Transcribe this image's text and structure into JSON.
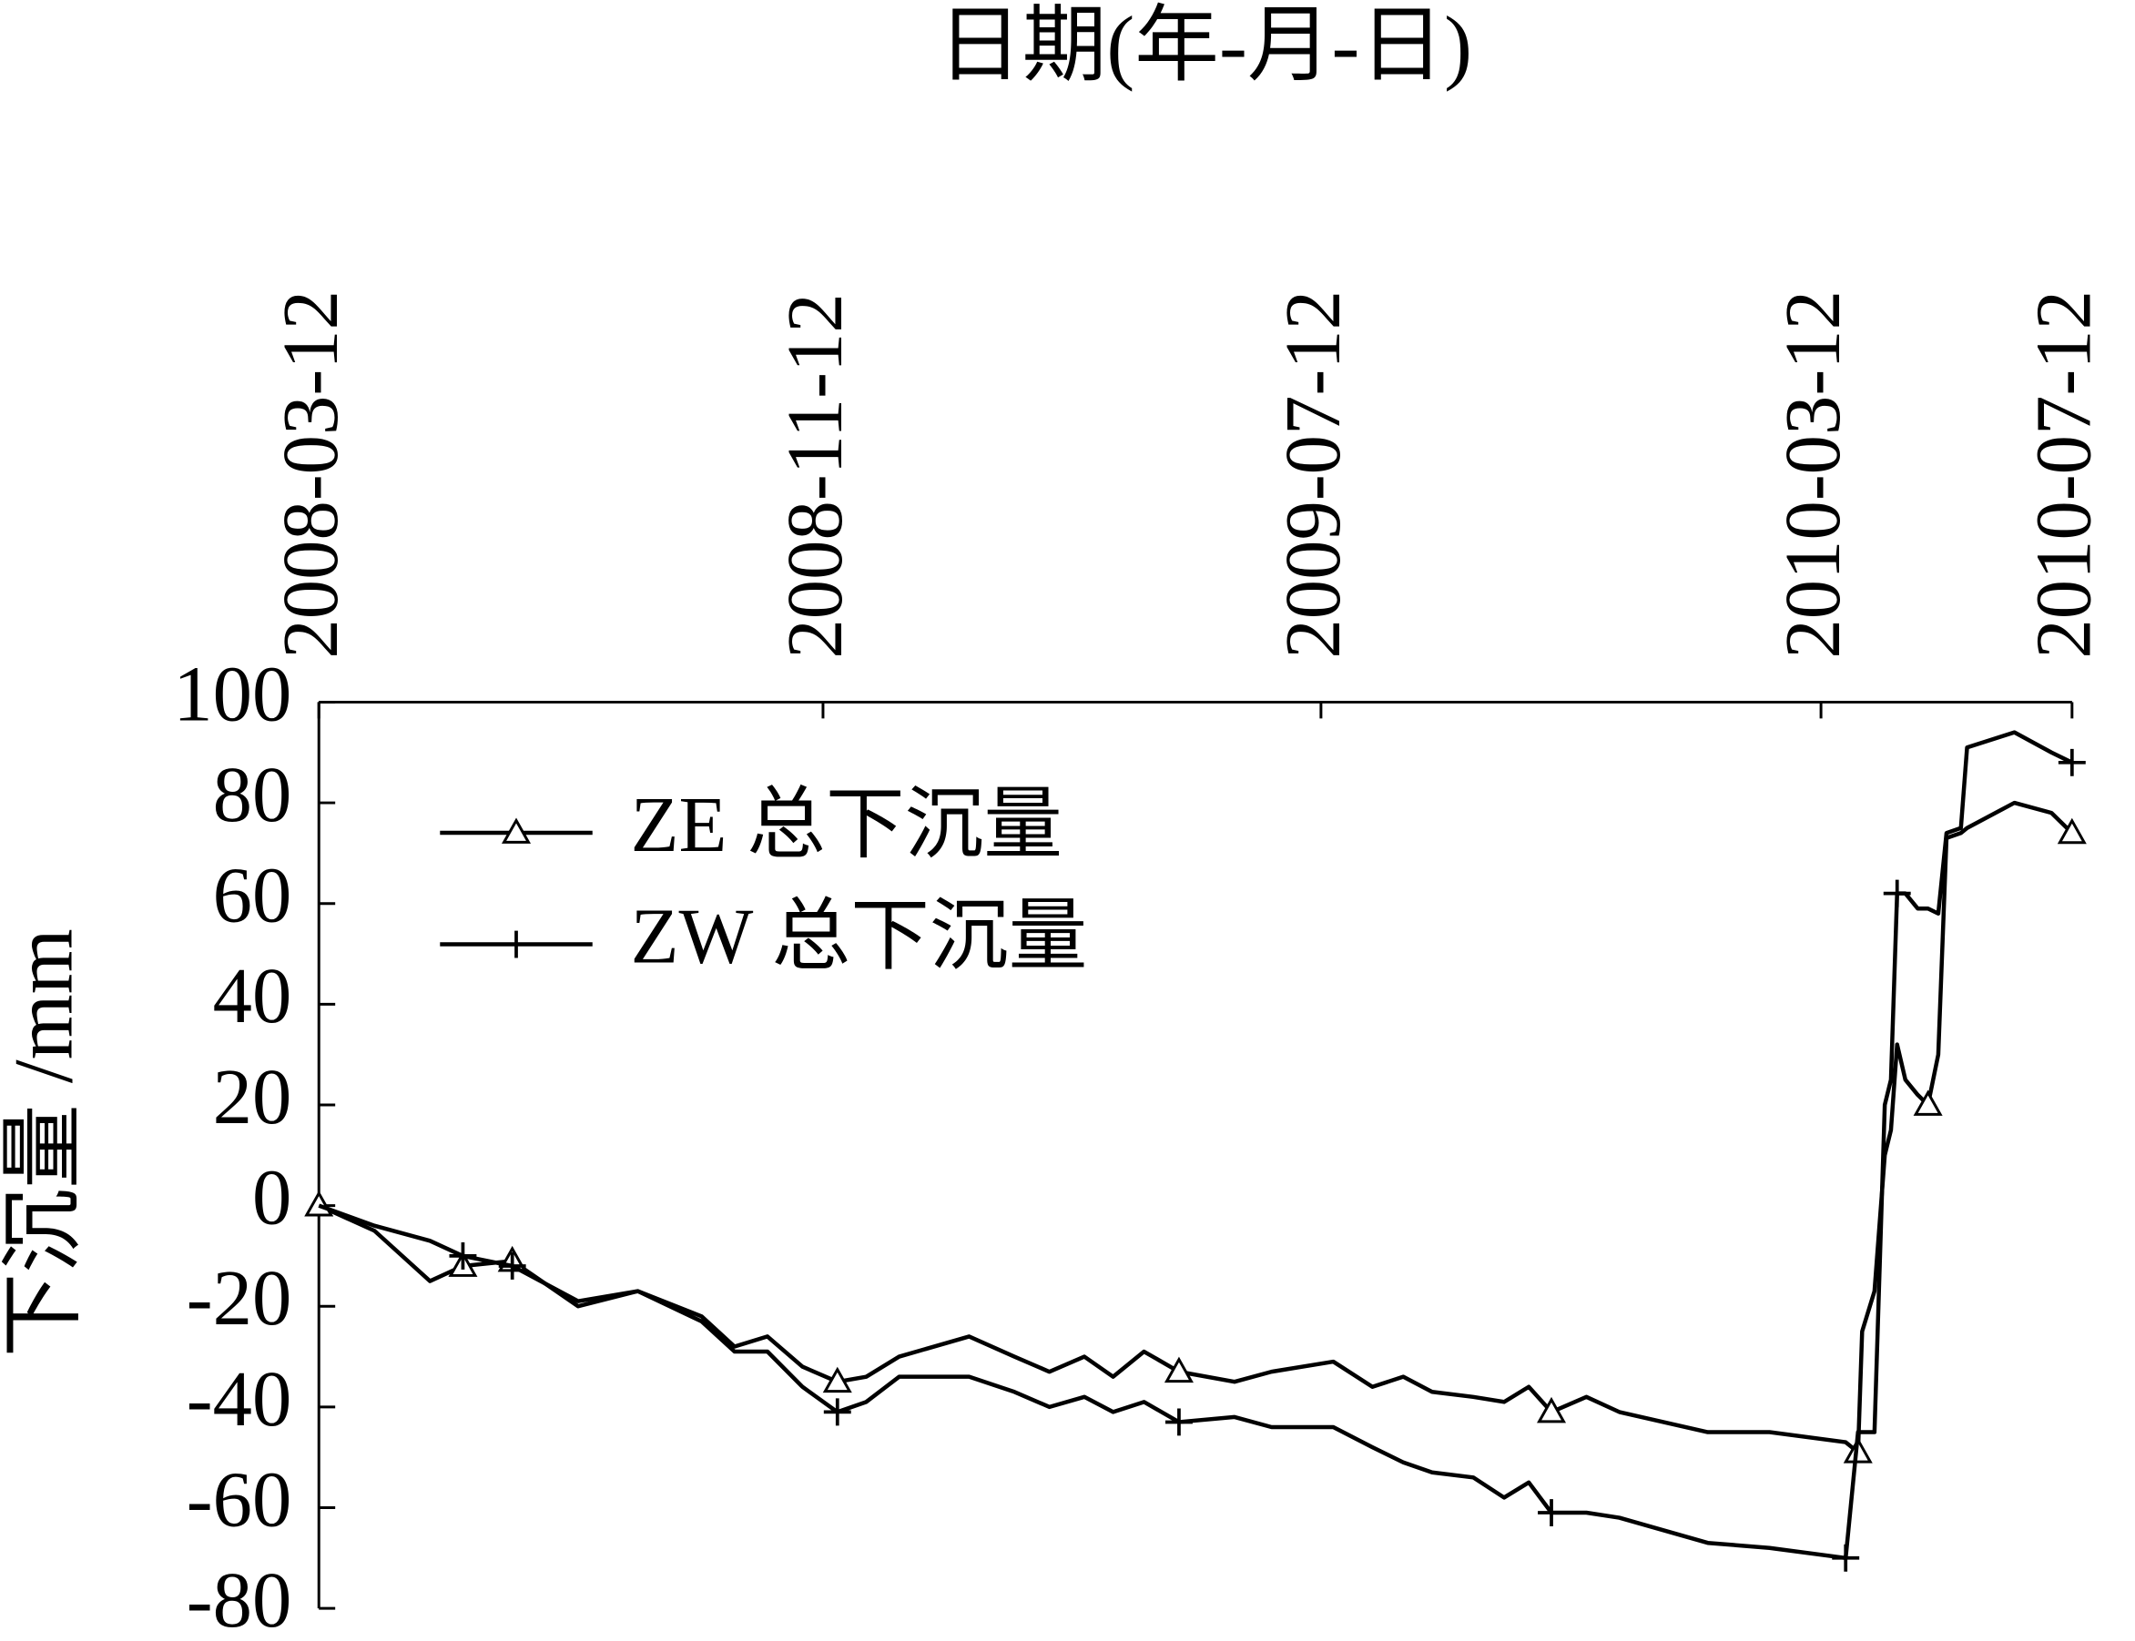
{
  "chart_data": {
    "type": "line",
    "x_label": "日期(年-月-日)",
    "y_label": "下沉量 /mm",
    "x": [
      "2008-03-12",
      "2008-04-08",
      "2008-05-05",
      "2008-05-21",
      "2008-06-14",
      "2008-07-16",
      "2008-08-14",
      "2008-09-14",
      "2008-09-30",
      "2008-10-16",
      "2008-11-02",
      "2008-11-19",
      "2008-12-03",
      "2008-12-19",
      "2009-01-22",
      "2009-02-13",
      "2009-03-02",
      "2009-03-19",
      "2009-04-02",
      "2009-04-17",
      "2009-05-04",
      "2009-05-31",
      "2009-06-18",
      "2009-07-18",
      "2009-08-06",
      "2009-08-21",
      "2009-09-04",
      "2009-09-24",
      "2009-10-09",
      "2009-10-21",
      "2009-11-01",
      "2009-11-18",
      "2009-12-04",
      "2010-01-16",
      "2010-02-15",
      "2010-03-24",
      "2010-03-30",
      "2010-04-01",
      "2010-04-07",
      "2010-04-12",
      "2010-04-15",
      "2010-04-18",
      "2010-04-22",
      "2010-04-28",
      "2010-05-03",
      "2010-05-08",
      "2010-05-12",
      "2010-05-19",
      "2010-05-22",
      "2010-06-14",
      "2010-07-02",
      "2010-07-12"
    ],
    "series": [
      {
        "name": "ZE 总下沉量",
        "color": "#000000",
        "marker": "triangle",
        "values": [
          0,
          -5,
          -15,
          -12,
          -11,
          -20,
          -17,
          -22,
          -28,
          -26,
          -32,
          -35,
          -34,
          -30,
          -26,
          -30,
          -33,
          -30,
          -34,
          -29,
          -33,
          -35,
          -33,
          -31,
          -36,
          -34,
          -37,
          -38,
          -39,
          -36,
          -41,
          -38,
          -41,
          -45,
          -45,
          -47,
          -49,
          -25,
          -17,
          10,
          15,
          32,
          25,
          22,
          20,
          30,
          73,
          74,
          75,
          80,
          78,
          74
        ]
      },
      {
        "name": "ZW 总下沉量",
        "color": "#000000",
        "marker": "plus",
        "values": [
          0,
          -4,
          -7,
          -10,
          -12,
          -19,
          -17,
          -23,
          -29,
          -29,
          -36,
          -41,
          -39,
          -34,
          -34,
          -37,
          -40,
          -38,
          -41,
          -39,
          -43,
          -42,
          -44,
          -44,
          -48,
          -51,
          -53,
          -54,
          -58,
          -55,
          -61,
          -61,
          -62,
          -67,
          -68,
          -70,
          -45,
          -45,
          -45,
          20,
          25,
          62,
          62,
          59,
          59,
          58,
          74,
          75,
          91,
          94,
          90,
          88
        ]
      }
    ],
    "xlim": [
      "2008-03-12",
      "2010-07-12"
    ],
    "xticks": [
      "2008-03-12",
      "2008-11-12",
      "2009-07-12",
      "2010-03-12",
      "2010-07-12"
    ],
    "ylim": [
      -80,
      100
    ],
    "yticks": [
      -80,
      -60,
      -40,
      -20,
      0,
      20,
      40,
      60,
      80,
      100
    ],
    "legend": "upper-left",
    "grid": false
  }
}
